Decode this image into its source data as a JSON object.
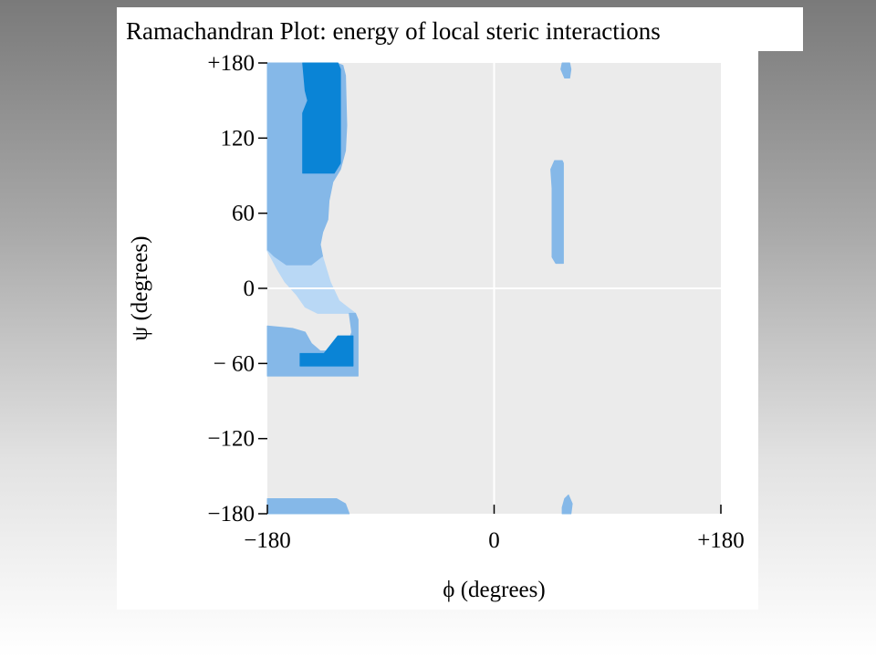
{
  "title": "Ramachandran Plot: energy of local steric interactions",
  "colors": {
    "plot_background": "#ebebeb",
    "region_outer": "#85b8e8",
    "region_core": "#0a84d6",
    "region_bridge": "#b9d8f5",
    "crosshair": "#ffffff"
  },
  "chart_data": {
    "type": "heatmap",
    "title": "",
    "xlabel": "ϕ (degrees)",
    "ylabel": "ψ (degrees)",
    "xlim": [
      -180,
      180
    ],
    "ylim": [
      -180,
      180
    ],
    "grid": false,
    "crosshair": {
      "x": 0,
      "y": 0
    },
    "x_ticks": [
      {
        "value": -180,
        "label": "−180"
      },
      {
        "value": 0,
        "label": "0"
      },
      {
        "value": 180,
        "label": "+180"
      }
    ],
    "y_ticks": [
      {
        "value": 180,
        "label": "+180"
      },
      {
        "value": 120,
        "label": "120"
      },
      {
        "value": 60,
        "label": "60"
      },
      {
        "value": 0,
        "label": "0"
      },
      {
        "value": -60,
        "label": "− 60"
      },
      {
        "value": -120,
        "label": "−120"
      },
      {
        "value": -180,
        "label": "−180"
      }
    ],
    "regions": [
      {
        "id": "beta-outer",
        "level": "outer",
        "points": [
          [
            -180,
            180
          ],
          [
            -125,
            180
          ],
          [
            -120,
            178
          ],
          [
            -118,
            170
          ],
          [
            -117,
            130
          ],
          [
            -118,
            110
          ],
          [
            -122,
            95
          ],
          [
            -128,
            85
          ],
          [
            -131,
            70
          ],
          [
            -132,
            55
          ],
          [
            -136,
            45
          ],
          [
            -138,
            35
          ],
          [
            -136,
            25
          ],
          [
            -145,
            18
          ],
          [
            -165,
            18
          ],
          [
            -175,
            25
          ],
          [
            -180,
            30
          ]
        ]
      },
      {
        "id": "bridge",
        "level": "bridge",
        "points": [
          [
            -180,
            30
          ],
          [
            -175,
            25
          ],
          [
            -165,
            18
          ],
          [
            -145,
            18
          ],
          [
            -136,
            25
          ],
          [
            -130,
            5
          ],
          [
            -123,
            -10
          ],
          [
            -110,
            -20
          ],
          [
            -140,
            -20
          ],
          [
            -150,
            -15
          ],
          [
            -157,
            -5
          ],
          [
            -166,
            5
          ],
          [
            -172,
            15
          ]
        ]
      },
      {
        "id": "alpha-outer",
        "level": "outer",
        "points": [
          [
            -180,
            -30
          ],
          [
            -160,
            -32
          ],
          [
            -150,
            -35
          ],
          [
            -145,
            -44
          ],
          [
            -138,
            -50
          ],
          [
            -118,
            -50
          ],
          [
            -113,
            -35
          ],
          [
            -115,
            -20
          ],
          [
            -110,
            -20
          ],
          [
            -108,
            -25
          ],
          [
            -108,
            -70
          ],
          [
            -180,
            -70
          ]
        ]
      },
      {
        "id": "bottom-strip",
        "level": "outer",
        "points": [
          [
            -180,
            -168
          ],
          [
            -125,
            -168
          ],
          [
            -118,
            -172
          ],
          [
            -115,
            -180
          ],
          [
            -180,
            -180
          ]
        ]
      },
      {
        "id": "beta-core",
        "level": "core",
        "points": [
          [
            -152,
            180
          ],
          [
            -124,
            180
          ],
          [
            -122,
            175
          ],
          [
            -122,
            100
          ],
          [
            -127,
            92
          ],
          [
            -152,
            92
          ],
          [
            -152,
            140
          ],
          [
            -148,
            150
          ],
          [
            -150,
            158
          ]
        ]
      },
      {
        "id": "alpha-core",
        "level": "core",
        "points": [
          [
            -154,
            -52
          ],
          [
            -135,
            -52
          ],
          [
            -124,
            -38
          ],
          [
            -112,
            -38
          ],
          [
            -112,
            -62
          ],
          [
            -154,
            -62
          ]
        ]
      },
      {
        "id": "left-alpha",
        "level": "outer",
        "points": [
          [
            48,
            102
          ],
          [
            54,
            102
          ],
          [
            55,
            100
          ],
          [
            55,
            20
          ],
          [
            49,
            20
          ],
          [
            46,
            25
          ],
          [
            46,
            80
          ],
          [
            45,
            95
          ]
        ]
      },
      {
        "id": "left-top-notch",
        "level": "outer",
        "points": [
          [
            54,
            180
          ],
          [
            60,
            180
          ],
          [
            61,
            175
          ],
          [
            60,
            168
          ],
          [
            56,
            168
          ],
          [
            53,
            175
          ]
        ]
      },
      {
        "id": "left-bottom-notch",
        "level": "outer",
        "points": [
          [
            54,
            -180
          ],
          [
            61,
            -180
          ],
          [
            62,
            -172
          ],
          [
            59,
            -165
          ],
          [
            56,
            -168
          ],
          [
            54,
            -175
          ]
        ]
      }
    ]
  }
}
